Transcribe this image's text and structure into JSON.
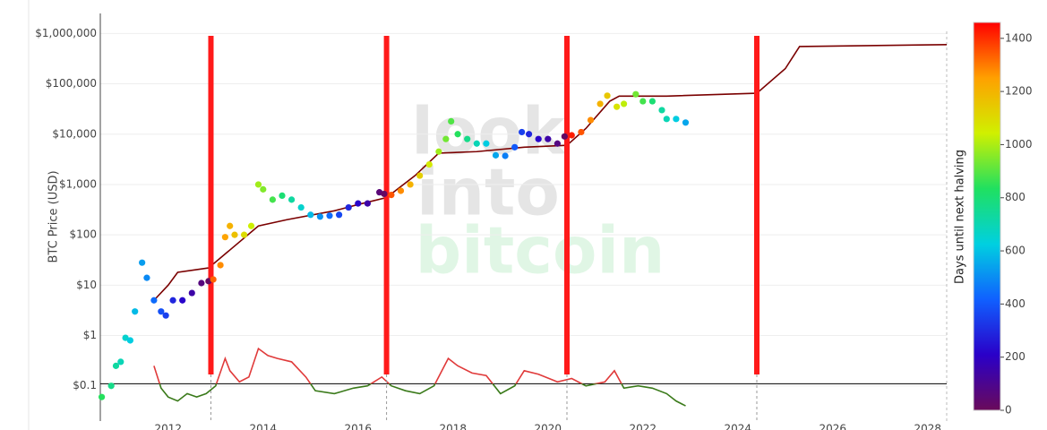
{
  "chart_data": {
    "type": "scatter",
    "ylabel": "BTC Price (USD)",
    "watermark": [
      "look",
      "into",
      "bitcoin"
    ],
    "x": [
      2010.6,
      2010.8,
      2010.9,
      2011.0,
      2011.1,
      2011.2,
      2011.3,
      2011.45,
      2011.55,
      2011.7,
      2011.85,
      2011.95,
      2012.1,
      2012.3,
      2012.5,
      2012.7,
      2012.85,
      2012.95,
      2013.1,
      2013.2,
      2013.3,
      2013.4,
      2013.6,
      2013.75,
      2013.9,
      2014.0,
      2014.2,
      2014.4,
      2014.6,
      2014.8,
      2015.0,
      2015.2,
      2015.4,
      2015.6,
      2015.8,
      2016.0,
      2016.2,
      2016.45,
      2016.55,
      2016.7,
      2016.9,
      2017.1,
      2017.3,
      2017.5,
      2017.7,
      2017.85,
      2017.96,
      2018.1,
      2018.3,
      2018.5,
      2018.7,
      2018.9,
      2019.1,
      2019.3,
      2019.45,
      2019.6,
      2019.8,
      2020.0,
      2020.2,
      2020.35,
      2020.5,
      2020.7,
      2020.9,
      2021.1,
      2021.25,
      2021.45,
      2021.6,
      2021.85,
      2022.0,
      2022.2,
      2022.4,
      2022.5,
      2022.7,
      2022.9
    ],
    "values": [
      0.06,
      0.1,
      0.25,
      0.3,
      0.9,
      0.8,
      3,
      28,
      14,
      5,
      3,
      2.5,
      5,
      5,
      7,
      11,
      12,
      13,
      25,
      90,
      150,
      100,
      100,
      150,
      1000,
      800,
      500,
      600,
      500,
      350,
      250,
      230,
      240,
      250,
      350,
      420,
      420,
      700,
      650,
      620,
      750,
      1000,
      1500,
      2500,
      4500,
      8000,
      18000,
      10000,
      8000,
      6500,
      6500,
      3800,
      3700,
      5500,
      11000,
      10000,
      8000,
      8000,
      6500,
      9000,
      9500,
      11000,
      19000,
      40000,
      58000,
      35000,
      40000,
      62000,
      45000,
      45000,
      30000,
      20000,
      20000,
      17000
    ],
    "days": [
      840,
      767,
      730,
      694,
      657,
      621,
      584,
      530,
      493,
      438,
      383,
      347,
      292,
      219,
      146,
      69,
      18,
      1332,
      1278,
      1241,
      1205,
      1168,
      1095,
      1040,
      986,
      949,
      876,
      803,
      730,
      657,
      584,
      511,
      438,
      365,
      292,
      219,
      146,
      55,
      18,
      1351,
      1278,
      1205,
      1132,
      1059,
      986,
      931,
      891,
      840,
      767,
      694,
      621,
      548,
      475,
      402,
      347,
      292,
      219,
      146,
      73,
      18,
      1424,
      1351,
      1278,
      1205,
      1150,
      1077,
      1022,
      931,
      876,
      803,
      730,
      694,
      621,
      548
    ],
    "lines": [
      {
        "color": "#7a0000",
        "x": [
          2011.7,
          2012.0,
          2012.2,
          2012.85,
          2013.3,
          2013.9,
          2014.5,
          2015.5,
          2016.0,
          2016.6,
          2017.2,
          2017.7,
          2018.5,
          2019.5,
          2020.4,
          2020.8,
          2021.3,
          2021.5,
          2022.5,
          2024.4,
          2025.0,
          2025.3,
          2028.4
        ],
        "values": [
          5,
          10,
          18,
          22,
          50,
          150,
          200,
          300,
          400,
          550,
          1500,
          4200,
          4500,
          5500,
          6000,
          13000,
          45000,
          57000,
          57000,
          65000,
          200000,
          550000,
          600000
        ]
      }
    ],
    "halvings": [
      2012.9,
      2016.6,
      2020.4,
      2024.4
    ],
    "halving_color": "#ff1a1a",
    "oscillator": {
      "x": [
        2011.7,
        2011.85,
        2012.0,
        2012.2,
        2012.4,
        2012.6,
        2012.8,
        2013.0,
        2013.2,
        2013.3,
        2013.5,
        2013.7,
        2013.9,
        2014.1,
        2014.3,
        2014.6,
        2014.9,
        2015.1,
        2015.5,
        2015.9,
        2016.2,
        2016.5,
        2016.7,
        2017.0,
        2017.3,
        2017.6,
        2017.9,
        2018.1,
        2018.4,
        2018.7,
        2019.0,
        2019.3,
        2019.5,
        2019.8,
        2020.2,
        2020.5,
        2020.8,
        2021.2,
        2021.4,
        2021.6,
        2021.9,
        2022.2,
        2022.5,
        2022.7,
        2022.9
      ],
      "values": [
        0.25,
        0.09,
        0.06,
        0.05,
        0.07,
        0.06,
        0.07,
        0.1,
        0.35,
        0.2,
        0.12,
        0.15,
        0.55,
        0.4,
        0.35,
        0.3,
        0.15,
        0.08,
        0.07,
        0.09,
        0.1,
        0.15,
        0.1,
        0.08,
        0.07,
        0.1,
        0.35,
        0.25,
        0.18,
        0.16,
        0.07,
        0.1,
        0.2,
        0.17,
        0.12,
        0.14,
        0.1,
        0.12,
        0.2,
        0.09,
        0.1,
        0.09,
        0.07,
        0.05,
        0.04
      ],
      "threshold": 0.11,
      "color_above": "#e03a3a",
      "color_below": "#3a7a1a"
    },
    "xlim": [
      2010.57,
      2028.4
    ],
    "xticks": [
      2012,
      2014,
      2016,
      2018,
      2020,
      2022,
      2024,
      2026,
      2028
    ],
    "ylim": [
      0.02,
      2500000
    ],
    "yticks": [
      {
        "value": 0.1,
        "label": "$0.1"
      },
      {
        "value": 1,
        "label": "$1"
      },
      {
        "value": 10,
        "label": "$10"
      },
      {
        "value": 100,
        "label": "$100"
      },
      {
        "value": 1000,
        "label": "$1,000"
      },
      {
        "value": 10000,
        "label": "$10,000"
      },
      {
        "value": 100000,
        "label": "$100,000"
      },
      {
        "value": 1000000,
        "label": "$1,000,000"
      }
    ],
    "log_y": true,
    "grid": true,
    "colorbar": {
      "label": "Days until next halving",
      "lim": [
        0,
        1460
      ],
      "ticks": [
        0,
        200,
        400,
        600,
        800,
        1000,
        1200,
        1400
      ],
      "colors": [
        "#6a0a5a",
        "#2a00c8",
        "#1060ff",
        "#00d0e0",
        "#20e060",
        "#d0f000",
        "#ffa000",
        "#ff0000"
      ]
    }
  }
}
